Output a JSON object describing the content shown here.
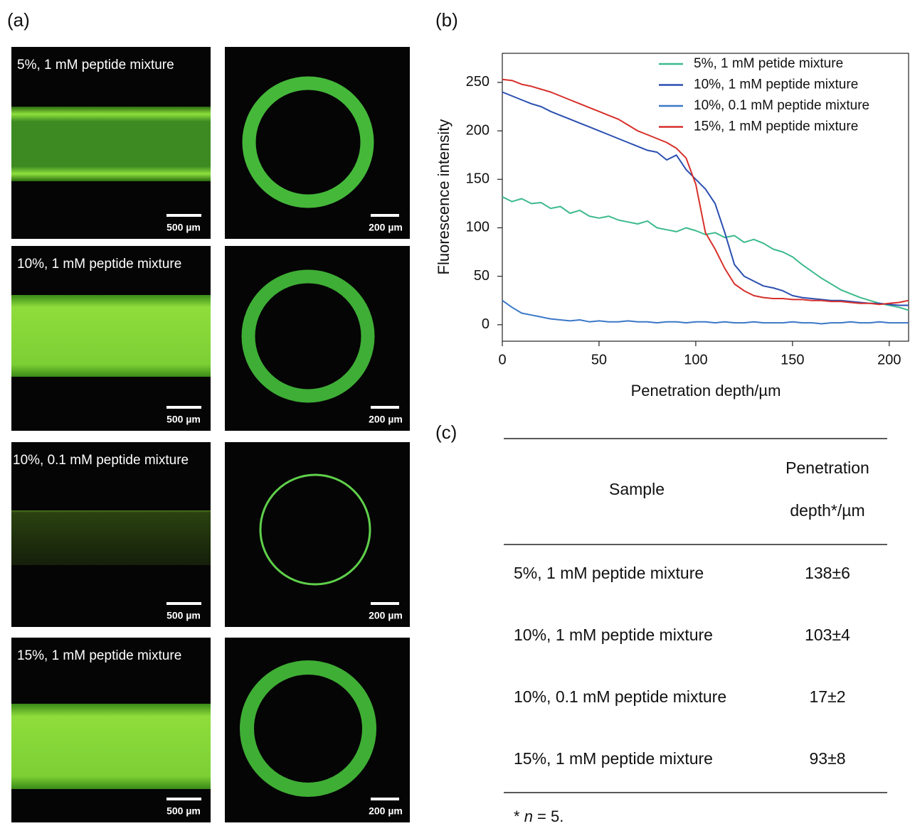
{
  "panel_a": {
    "label": "(a)",
    "rows": [
      {
        "caption": "5%, 1 mM peptide mixture",
        "tube_scale": "500 µm",
        "ring_scale": "200 µm"
      },
      {
        "caption": "10%, 1 mM peptide mixture",
        "tube_scale": "500 µm",
        "ring_scale": "200 µm"
      },
      {
        "caption": "10%, 0.1 mM peptide mixture",
        "tube_scale": "500 µm",
        "ring_scale": "200 µm"
      },
      {
        "caption": "15%, 1 mM peptide mixture",
        "tube_scale": "500 µm",
        "ring_scale": "200 µm"
      }
    ]
  },
  "chart_data": {
    "type": "line",
    "panel_label": "(b)",
    "x_label": "Penetration depth/µm",
    "y_label": "Fluorescence intensity",
    "x": [
      0,
      5,
      10,
      15,
      20,
      25,
      30,
      35,
      40,
      45,
      50,
      55,
      60,
      65,
      70,
      75,
      80,
      85,
      90,
      95,
      100,
      105,
      110,
      115,
      120,
      125,
      130,
      135,
      140,
      145,
      150,
      155,
      160,
      165,
      170,
      175,
      180,
      185,
      190,
      195,
      200,
      205,
      210
    ],
    "xlim": [
      0,
      210
    ],
    "ylim": [
      -17,
      280
    ],
    "xticks": [
      0,
      50,
      100,
      150,
      200
    ],
    "yticks": [
      0,
      50,
      100,
      150,
      200,
      250
    ],
    "series": [
      {
        "name": "5%, 1 mM petide mixture",
        "color": "#3dba8c",
        "values": [
          132,
          127,
          130,
          125,
          126,
          120,
          122,
          115,
          118,
          112,
          110,
          112,
          108,
          106,
          104,
          107,
          100,
          98,
          96,
          100,
          97,
          93,
          95,
          90,
          92,
          85,
          88,
          84,
          78,
          75,
          70,
          62,
          55,
          48,
          42,
          36,
          32,
          28,
          25,
          22,
          20,
          18,
          15
        ]
      },
      {
        "name": "10%, 1 mM peptide mixture",
        "color": "#2b4fb0",
        "values": [
          240,
          236,
          232,
          228,
          225,
          220,
          216,
          212,
          208,
          204,
          200,
          196,
          192,
          188,
          184,
          180,
          178,
          170,
          175,
          160,
          150,
          140,
          125,
          95,
          62,
          50,
          45,
          40,
          38,
          35,
          30,
          28,
          27,
          26,
          25,
          25,
          24,
          23,
          22,
          22,
          21,
          20,
          20
        ]
      },
      {
        "name": "10%, 0.1 mM peptide mixture",
        "color": "#3a78c8",
        "values": [
          25,
          18,
          12,
          10,
          8,
          6,
          5,
          4,
          5,
          3,
          4,
          3,
          3,
          4,
          3,
          3,
          2,
          3,
          3,
          2,
          3,
          3,
          2,
          3,
          2,
          2,
          3,
          2,
          2,
          2,
          3,
          2,
          2,
          1,
          2,
          2,
          3,
          2,
          2,
          3,
          2,
          2,
          2
        ]
      },
      {
        "name": "15%, 1 mM peptide mixture",
        "color": "#d6302b",
        "values": [
          253,
          252,
          248,
          246,
          243,
          240,
          236,
          232,
          228,
          224,
          220,
          216,
          212,
          206,
          200,
          196,
          192,
          188,
          182,
          172,
          145,
          95,
          78,
          58,
          42,
          35,
          30,
          28,
          27,
          27,
          26,
          26,
          25,
          25,
          24,
          24,
          23,
          22,
          22,
          21,
          22,
          23,
          25
        ]
      }
    ]
  },
  "panel_c": {
    "label": "(c)",
    "header": {
      "sample": "Sample",
      "depth": [
        "Penetration",
        "depth*/µm"
      ]
    },
    "rows": [
      [
        "5%, 1 mM peptide mixture",
        "138±6"
      ],
      [
        "10%, 1 mM peptide mixture",
        "103±4"
      ],
      [
        "10%, 0.1 mM peptide mixture",
        "17±2"
      ],
      [
        "15%, 1 mM peptide mixture",
        "93±8"
      ]
    ],
    "footnote": [
      "* ",
      "n",
      " = 5."
    ]
  }
}
